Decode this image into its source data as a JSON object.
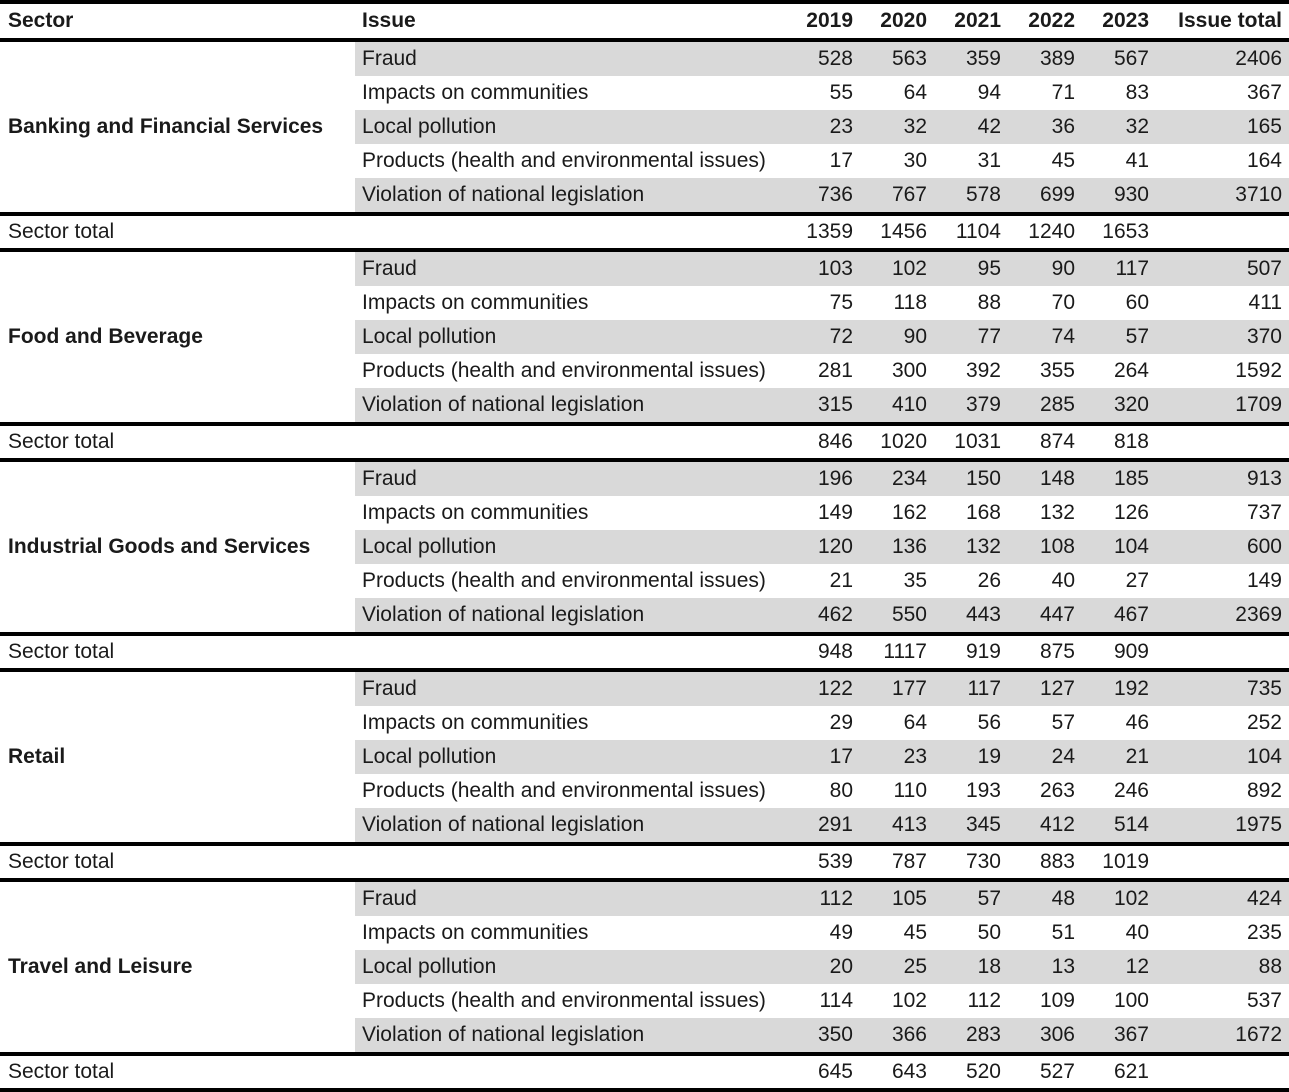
{
  "colors": {
    "stripe": "#d9d9d9",
    "rule": "#000000",
    "text": "#1a1a1a"
  },
  "chart_data": {
    "type": "table",
    "columns": [
      "Sector",
      "Issue",
      "2019",
      "2020",
      "2021",
      "2022",
      "2023",
      "Issue total"
    ],
    "sector_total_label": "Sector total",
    "sectors": [
      {
        "name": "Banking and Financial Services",
        "rows": [
          {
            "issue": "Fraud",
            "values": [
              528,
              563,
              359,
              389,
              567
            ],
            "issue_total": 2406
          },
          {
            "issue": "Impacts on communities",
            "values": [
              55,
              64,
              94,
              71,
              83
            ],
            "issue_total": 367
          },
          {
            "issue": "Local pollution",
            "values": [
              23,
              32,
              42,
              36,
              32
            ],
            "issue_total": 165
          },
          {
            "issue": "Products (health and environmental issues)",
            "values": [
              17,
              30,
              31,
              45,
              41
            ],
            "issue_total": 164
          },
          {
            "issue": "Violation of national legislation",
            "values": [
              736,
              767,
              578,
              699,
              930
            ],
            "issue_total": 3710
          }
        ],
        "sector_total": [
          1359,
          1456,
          1104,
          1240,
          1653
        ]
      },
      {
        "name": "Food and Beverage",
        "rows": [
          {
            "issue": "Fraud",
            "values": [
              103,
              102,
              95,
              90,
              117
            ],
            "issue_total": 507
          },
          {
            "issue": "Impacts on communities",
            "values": [
              75,
              118,
              88,
              70,
              60
            ],
            "issue_total": 411
          },
          {
            "issue": "Local pollution",
            "values": [
              72,
              90,
              77,
              74,
              57
            ],
            "issue_total": 370
          },
          {
            "issue": "Products (health and environmental issues)",
            "values": [
              281,
              300,
              392,
              355,
              264
            ],
            "issue_total": 1592
          },
          {
            "issue": "Violation of national legislation",
            "values": [
              315,
              410,
              379,
              285,
              320
            ],
            "issue_total": 1709
          }
        ],
        "sector_total": [
          846,
          1020,
          1031,
          874,
          818
        ]
      },
      {
        "name": "Industrial Goods and Services",
        "rows": [
          {
            "issue": "Fraud",
            "values": [
              196,
              234,
              150,
              148,
              185
            ],
            "issue_total": 913
          },
          {
            "issue": "Impacts on communities",
            "values": [
              149,
              162,
              168,
              132,
              126
            ],
            "issue_total": 737
          },
          {
            "issue": "Local pollution",
            "values": [
              120,
              136,
              132,
              108,
              104
            ],
            "issue_total": 600
          },
          {
            "issue": "Products (health and environmental issues)",
            "values": [
              21,
              35,
              26,
              40,
              27
            ],
            "issue_total": 149
          },
          {
            "issue": "Violation of national legislation",
            "values": [
              462,
              550,
              443,
              447,
              467
            ],
            "issue_total": 2369
          }
        ],
        "sector_total": [
          948,
          1117,
          919,
          875,
          909
        ]
      },
      {
        "name": "Retail",
        "rows": [
          {
            "issue": "Fraud",
            "values": [
              122,
              177,
              117,
              127,
              192
            ],
            "issue_total": 735
          },
          {
            "issue": "Impacts on communities",
            "values": [
              29,
              64,
              56,
              57,
              46
            ],
            "issue_total": 252
          },
          {
            "issue": "Local pollution",
            "values": [
              17,
              23,
              19,
              24,
              21
            ],
            "issue_total": 104
          },
          {
            "issue": "Products (health and environmental issues)",
            "values": [
              80,
              110,
              193,
              263,
              246
            ],
            "issue_total": 892
          },
          {
            "issue": "Violation of national legislation",
            "values": [
              291,
              413,
              345,
              412,
              514
            ],
            "issue_total": 1975
          }
        ],
        "sector_total": [
          539,
          787,
          730,
          883,
          1019
        ]
      },
      {
        "name": "Travel and Leisure",
        "rows": [
          {
            "issue": "Fraud",
            "values": [
              112,
              105,
              57,
              48,
              102
            ],
            "issue_total": 424
          },
          {
            "issue": "Impacts on communities",
            "values": [
              49,
              45,
              50,
              51,
              40
            ],
            "issue_total": 235
          },
          {
            "issue": "Local pollution",
            "values": [
              20,
              25,
              18,
              13,
              12
            ],
            "issue_total": 88
          },
          {
            "issue": "Products (health and environmental issues)",
            "values": [
              114,
              102,
              112,
              109,
              100
            ],
            "issue_total": 537
          },
          {
            "issue": "Violation of national legislation",
            "values": [
              350,
              366,
              283,
              306,
              367
            ],
            "issue_total": 1672
          }
        ],
        "sector_total": [
          645,
          643,
          520,
          527,
          621
        ]
      }
    ]
  }
}
